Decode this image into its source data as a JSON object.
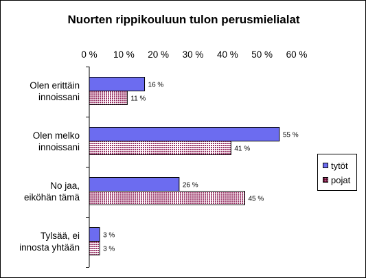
{
  "chart_data": {
    "type": "bar",
    "orientation": "horizontal",
    "title": "Nuorten rippikouluun tulon perusmielialat",
    "categories": [
      "Olen erittäin innoissani",
      "Olen melko innoissani",
      "No jaa, eiköhän tämä",
      "Tylsää, ei innosta yhtään"
    ],
    "category_lines": [
      [
        "Olen erittäin",
        "innoissani"
      ],
      [
        "Olen melko",
        "innoissani"
      ],
      [
        "No jaa,",
        "eiköhän tämä"
      ],
      [
        "Tylsää, ei",
        "innosta yhtään"
      ]
    ],
    "series": [
      {
        "name": "tytöt",
        "values": [
          16,
          55,
          26,
          3
        ],
        "labels": [
          "16 %",
          "55 %",
          "26 %",
          "3 %"
        ],
        "color": "#6c6cf0",
        "pattern": "solid"
      },
      {
        "name": "pojat",
        "values": [
          11,
          41,
          45,
          3
        ],
        "labels": [
          "11 %",
          "41 %",
          "45 %",
          "3 %"
        ],
        "color": "#993366",
        "pattern": "grid"
      }
    ],
    "xlim": [
      0,
      60
    ],
    "xticks": [
      0,
      10,
      20,
      30,
      40,
      50,
      60
    ],
    "xtick_labels": [
      "0 %",
      "10 %",
      "20 %",
      "30 %",
      "40 %",
      "50 %",
      "60 %"
    ],
    "x_axis_position": "top",
    "grid": false,
    "legend_position": "right"
  }
}
